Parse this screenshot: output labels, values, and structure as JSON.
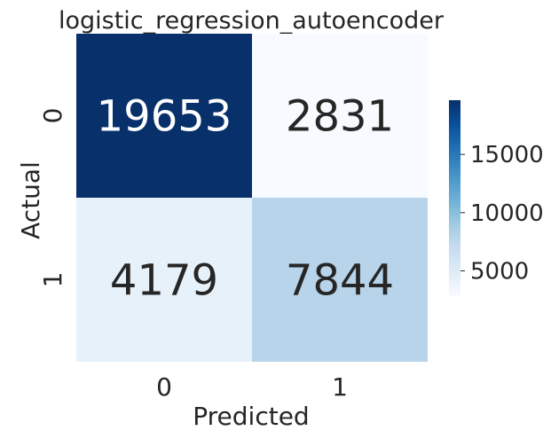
{
  "chart_data": {
    "type": "heatmap",
    "title": "logistic_regression_autoencoder",
    "xlabel": "Predicted",
    "ylabel": "Actual",
    "x_categories": [
      "0",
      "1"
    ],
    "y_categories": [
      "0",
      "1"
    ],
    "values": [
      [
        19653,
        2831
      ],
      [
        4179,
        7844
      ]
    ],
    "cell_labels": [
      [
        "19653",
        "2831"
      ],
      [
        "4179",
        "7844"
      ]
    ],
    "colormap": "Blues",
    "colorbar": {
      "ticks": [
        5000,
        10000,
        15000
      ],
      "tick_labels": [
        "5000",
        "10000",
        "15000"
      ],
      "range": [
        2831,
        19653
      ]
    }
  },
  "colors": {
    "text_dark": "#262626",
    "text_light": "#ffffff"
  }
}
